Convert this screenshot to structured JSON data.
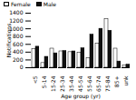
{
  "chart_data": {
    "type": "bar",
    "categories": [
      "<5",
      "5-14",
      "15-24",
      "25-34",
      "35-44",
      "45-54",
      "55-64",
      "65-74",
      "75-84",
      "85+",
      "unk"
    ],
    "series": [
      {
        "name": "Female",
        "color": "#ffffff",
        "values": [
          480,
          120,
          490,
          420,
          400,
          390,
          250,
          620,
          1250,
          490,
          60
        ]
      },
      {
        "name": "Male",
        "color": "#111111",
        "values": [
          540,
          280,
          370,
          430,
          420,
          500,
          850,
          1000,
          950,
          160,
          80
        ]
      }
    ],
    "xlabel": "Age group (yr)",
    "ylabel": "Notifications",
    "ylim": [
      0,
      1400
    ],
    "yticks": [
      0,
      200,
      400,
      600,
      800,
      1000,
      1200,
      1400
    ],
    "legend": "upper left"
  }
}
